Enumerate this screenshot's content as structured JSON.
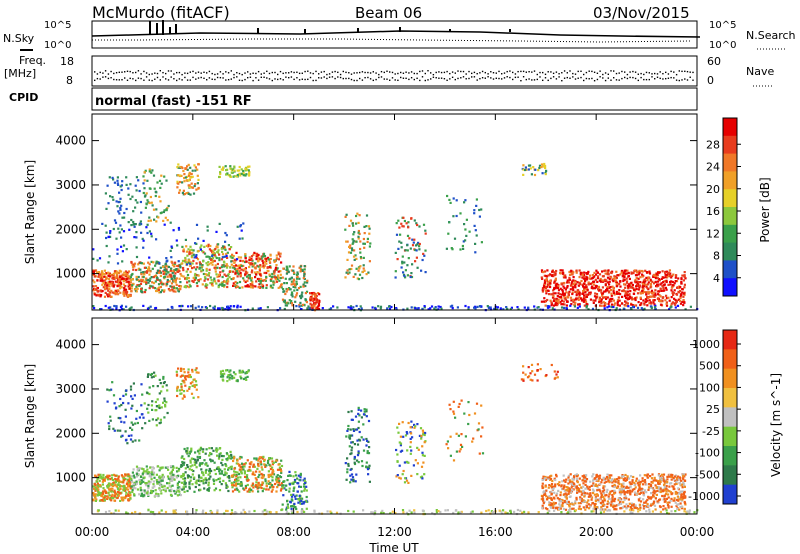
{
  "header": {
    "title": "McMurdo (fitACF)",
    "beam": "Beam 06",
    "date": "03/Nov/2015"
  },
  "side_labels": {
    "nsky": "N.Sky",
    "freq": "Freq.",
    "freq_unit": "[MHz]",
    "cpid": "CPID",
    "nsearch": "N.Search",
    "nave": "Nave"
  },
  "noise_panel": {
    "left_ticks": [
      "10^5",
      "10^0"
    ],
    "right_ticks": [
      "10^5",
      "10^0"
    ]
  },
  "freq_panel": {
    "left_ticks": [
      "18",
      "8"
    ],
    "right_ticks": [
      "60",
      "0"
    ]
  },
  "cpid_text": "normal (fast) -151 RF",
  "chart_data": [
    {
      "type": "heatmap",
      "name": "power",
      "ylabel": "Slant Range [km]",
      "ylim": [
        180,
        4600
      ],
      "y_ticks": [
        "1000",
        "2000",
        "3000",
        "4000"
      ],
      "colorbar_label": "Power [dB]",
      "colorbar_ticks": [
        "4",
        "8",
        "12",
        "16",
        "20",
        "24",
        "28"
      ],
      "colorbar_colors": [
        "#1010ff",
        "#1e50c8",
        "#2f8a5a",
        "#3aa04a",
        "#8cc83c",
        "#e6d028",
        "#f0a028",
        "#f07828",
        "#e83c1e",
        "#e60000"
      ]
    },
    {
      "type": "heatmap",
      "name": "velocity",
      "ylabel": "Slant Range [km]",
      "ylim": [
        180,
        4600
      ],
      "y_ticks": [
        "1000",
        "2000",
        "3000",
        "4000"
      ],
      "colorbar_label": "Velocity [m s^-1]",
      "colorbar_ticks": [
        "1000",
        "500",
        "100",
        "25",
        "-25",
        "-100",
        "-500",
        "-1000"
      ],
      "colorbar_colors": [
        "#2040d0",
        "#2e7a4a",
        "#3aa04a",
        "#78c83c",
        "#c0c0c0",
        "#f0c040",
        "#f09020",
        "#f06018",
        "#e62814"
      ]
    }
  ],
  "time_axis": {
    "label": "Time UT",
    "ticks": [
      "00:00",
      "04:00",
      "08:00",
      "12:00",
      "16:00",
      "20:00",
      "00:00"
    ]
  }
}
